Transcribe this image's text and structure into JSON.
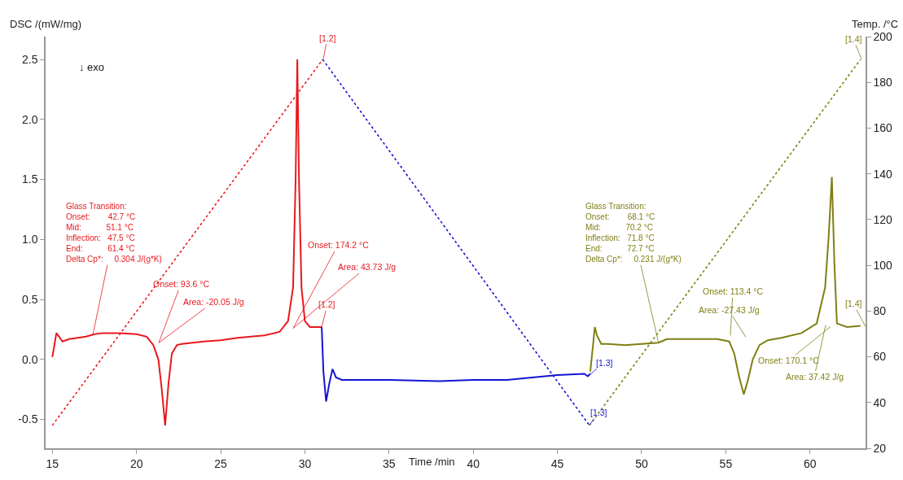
{
  "chart_data": {
    "type": "line",
    "xlabel": "Time /min",
    "ylabel": "DSC /(mW/mg)",
    "y2label": "Temp. /°C",
    "xlim": [
      14.6,
      63.3
    ],
    "xticks": [
      15,
      20,
      25,
      30,
      35,
      40,
      45,
      50,
      55,
      60
    ],
    "ylim": [
      -0.74,
      2.69
    ],
    "yticks": [
      -0.5,
      {
        "value": 0,
        "label": "0.0"
      },
      0.5,
      {
        "value": 1,
        "label": "1.0"
      },
      1.5,
      {
        "value": 2,
        "label": "2.0"
      },
      2.5
    ],
    "y2lim": [
      20,
      200
    ],
    "y2ticks": [
      20,
      40,
      60,
      80,
      100,
      120,
      140,
      160,
      180,
      200
    ],
    "marker": "none",
    "series": [
      {
        "color": "#e8191e",
        "line_style": "solid",
        "x": [
          15.0,
          15.1,
          15.24,
          15.4,
          15.6,
          16.0,
          16.5,
          17.0,
          17.5,
          18.0,
          19.0,
          20.0,
          20.6,
          21.0,
          21.3,
          21.5,
          21.7,
          21.9,
          22.1,
          22.4,
          22.7,
          24.0,
          25.0,
          26.0,
          27.6,
          28.5,
          29.0,
          29.3,
          29.45,
          29.55,
          29.65,
          29.8,
          30.0,
          30.3,
          31.0
        ],
        "values": [
          0.02,
          0.1,
          0.22,
          0.19,
          0.15,
          0.17,
          0.18,
          0.19,
          0.21,
          0.22,
          0.22,
          0.21,
          0.19,
          0.12,
          0.0,
          -0.25,
          -0.55,
          -0.2,
          0.05,
          0.12,
          0.13,
          0.15,
          0.16,
          0.18,
          0.2,
          0.23,
          0.32,
          0.6,
          1.5,
          2.5,
          1.5,
          0.6,
          0.32,
          0.27,
          0.27
        ]
      },
      {
        "color": "#1414d2",
        "line_style": "solid",
        "x": [
          31.0,
          31.1,
          31.26,
          31.45,
          31.64,
          31.85,
          32.2,
          33.0,
          35.0,
          38.0,
          40.0,
          42.0,
          43.5,
          45.0,
          46.6,
          46.8,
          46.95
        ],
        "values": [
          0.27,
          -0.1,
          -0.35,
          -0.2,
          -0.08,
          -0.15,
          -0.17,
          -0.17,
          -0.17,
          -0.18,
          -0.17,
          -0.17,
          -0.15,
          -0.13,
          -0.12,
          -0.14,
          -0.12
        ]
      },
      {
        "color": "#7f7f14",
        "line_style": "solid",
        "x": [
          46.95,
          47.1,
          47.22,
          47.35,
          47.6,
          48.0,
          49.0,
          50.0,
          51.0,
          51.5,
          52.5,
          54.5,
          55.2,
          55.5,
          55.8,
          56.07,
          56.3,
          56.6,
          57.0,
          57.5,
          58.3,
          59.5,
          60.4,
          60.9,
          61.1,
          61.3,
          61.45,
          61.6,
          62.2,
          63.0
        ],
        "values": [
          -0.1,
          0.1,
          0.27,
          0.2,
          0.13,
          0.13,
          0.12,
          0.13,
          0.14,
          0.17,
          0.17,
          0.17,
          0.15,
          0.05,
          -0.15,
          -0.29,
          -0.18,
          0.0,
          0.12,
          0.16,
          0.18,
          0.22,
          0.3,
          0.6,
          1.0,
          1.52,
          0.8,
          0.3,
          0.27,
          0.28
        ]
      },
      {
        "color": "#e8191e",
        "line_style": "dotted",
        "axis": "y2",
        "x": [
          15.0,
          31.06
        ],
        "values": [
          30,
          190
        ]
      },
      {
        "color": "#1414d2",
        "line_style": "dotted",
        "axis": "y2",
        "x": [
          31.06,
          46.9
        ],
        "values": [
          190,
          30
        ]
      },
      {
        "color": "#7f7f14",
        "line_style": "dotted",
        "axis": "y2",
        "x": [
          46.9,
          63.0
        ],
        "values": [
          30,
          190
        ]
      }
    ],
    "annotations": [
      "↓ exo",
      {
        "text": "Glass Transition:\nOnset:        42.7 °C\nMid:           51.1 °C\nInflection:   47.5 °C\nEnd:           61.4 °C\nDelta Cp*:     0.304 J/(g*K)",
        "x": 17.4,
        "y": 0.2
      },
      "Onset: 93.6 °C",
      "Area: -20.05 J/g",
      "Onset: 174.2 °C",
      "Area: 43.73 J/g",
      "[1.2]",
      {
        "text": "[1.2]",
        "x": 31.0,
        "y": 0.27
      },
      "[1.3]",
      "[1.3]",
      {
        "text": "Glass Transition:\nOnset:        68.1 °C\nMid:           70.2 °C\nInflection:   71.8 °C\nEnd:           72.7 °C\nDelta Cp*:     0.231 J/(g*K)",
        "x": 51.0,
        "y": 0.14
      },
      "Onset: 113.4 °C",
      "Area: -27.43 J/g",
      "Onset: 170.1 °C",
      "Area: 37.42 J/g",
      "[1.4]",
      "[1.4]"
    ]
  }
}
